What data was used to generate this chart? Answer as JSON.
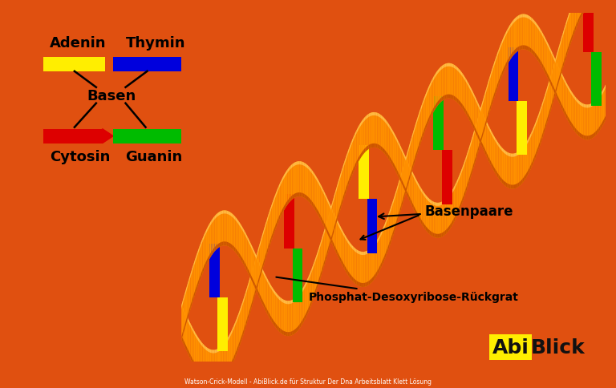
{
  "bg_color": "#e8e8e8",
  "border_color": "#E05010",
  "helix_color": "#FF9000",
  "helix_dark": "#CC5500",
  "helix_light": "#FFBB44",
  "adenin_color": "#FFEE00",
  "thymin_color": "#0000DD",
  "cytosin_color": "#DD0000",
  "guanin_color": "#00BB00",
  "legend_label_adenin": "Adenin",
  "legend_label_thymin": "Thymin",
  "legend_label_cytosin": "Cytosin",
  "legend_label_guanin": "Guanin",
  "legend_label_basen": "Basen",
  "label_basenpaare": "Basenpaare",
  "label_phosphat": "Phosphat-Desoxyribose-Rückgrat",
  "watermark_abi": "Abi",
  "watermark_blick": "Blick",
  "watermark_abi_color": "#FFEE00",
  "watermark_blick_color": "#111111",
  "footer_text": "Watson-Crick-Modell - AbiBlick.de für Struktur Der Dna Arbeitsblatt Klett Lösung"
}
